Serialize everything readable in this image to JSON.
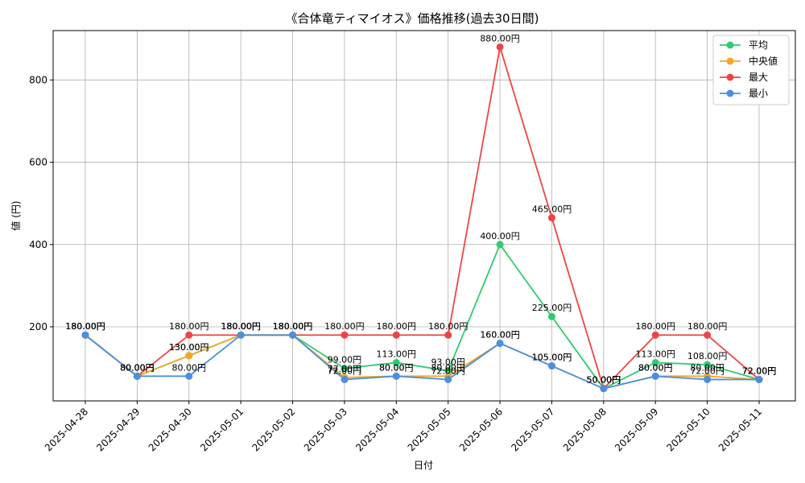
{
  "chart_data": {
    "type": "line",
    "title": "《合体竜ティマイオス》価格推移(過去30日間)",
    "xlabel": "日付",
    "ylabel": "値 (円)",
    "ylim": [
      20,
      920
    ],
    "yticks": [
      200,
      400,
      600,
      800
    ],
    "grid": true,
    "legend_position": "top-right",
    "unit_suffix": "円",
    "categories": [
      "2025-04-28",
      "2025-04-29",
      "2025-04-30",
      "2025-05-01",
      "2025-05-02",
      "2025-05-03",
      "2025-05-04",
      "2025-05-05",
      "2025-05-06",
      "2025-05-07",
      "2025-05-08",
      "2025-05-09",
      "2025-05-10",
      "2025-05-11"
    ],
    "series": [
      {
        "name": "平均",
        "color": "#2ecc71",
        "values": [
          180,
          80,
          130,
          180,
          180,
          99,
          113,
          93,
          400,
          225,
          50,
          113,
          108,
          72
        ]
      },
      {
        "name": "中央値",
        "color": "#f5a623",
        "values": [
          180,
          80,
          130,
          180,
          180,
          77,
          80,
          80,
          160,
          105,
          50,
          80,
          80,
          72
        ]
      },
      {
        "name": "最大",
        "color": "#ef4444",
        "values": [
          180,
          80,
          180,
          180,
          180,
          180,
          180,
          180,
          880,
          465,
          50,
          180,
          180,
          72
        ]
      },
      {
        "name": "最小",
        "color": "#4a90e2",
        "values": [
          180,
          80,
          80,
          180,
          180,
          72,
          80,
          72,
          160,
          105,
          50,
          80,
          72,
          72
        ]
      }
    ]
  }
}
